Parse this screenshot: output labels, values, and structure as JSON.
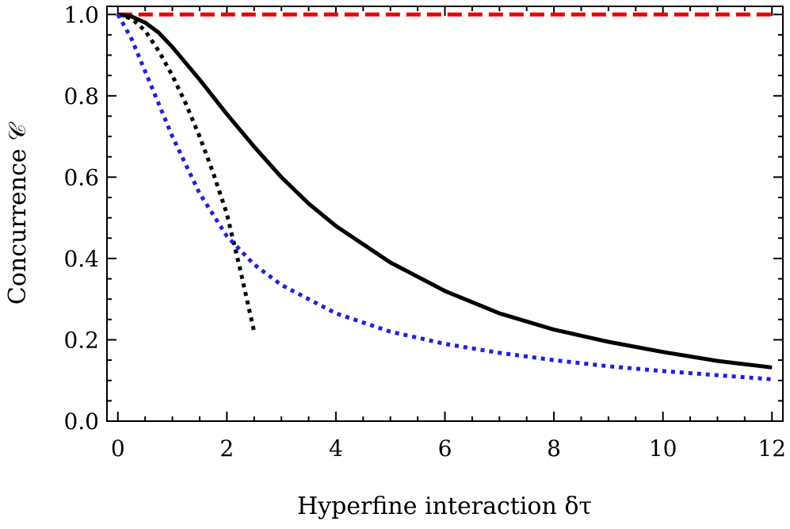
{
  "chart_data": {
    "type": "line",
    "xlabel": "Hyperfine interaction δτ",
    "ylabel": "Concurrence 𝒞",
    "xlim": [
      -0.2,
      12.2
    ],
    "ylim": [
      0,
      1.02
    ],
    "xticks": [
      0,
      2,
      4,
      6,
      8,
      10,
      12
    ],
    "yticks": [
      0.0,
      0.2,
      0.4,
      0.6,
      0.8,
      1.0
    ],
    "xtick_labels": [
      "0",
      "2",
      "4",
      "6",
      "8",
      "10",
      "12"
    ],
    "ytick_labels": [
      "0.0",
      "0.2",
      "0.4",
      "0.6",
      "0.8",
      "1.0"
    ],
    "grid": false,
    "legend": "none",
    "series": [
      {
        "style": "dashed",
        "color": "#ee0000",
        "x": [
          0,
          12
        ],
        "y": [
          1.0,
          1.0
        ]
      },
      {
        "style": "solid",
        "color": "#000000",
        "x": [
          0,
          0.25,
          0.5,
          0.75,
          1.0,
          1.25,
          1.5,
          2.0,
          2.5,
          3.0,
          3.5,
          4.0,
          5.0,
          6.0,
          7.0,
          8.0,
          9.0,
          10.0,
          11.0,
          12.0
        ],
        "y": [
          1.0,
          0.995,
          0.98,
          0.955,
          0.92,
          0.88,
          0.84,
          0.755,
          0.675,
          0.6,
          0.535,
          0.48,
          0.39,
          0.32,
          0.265,
          0.225,
          0.195,
          0.17,
          0.148,
          0.132
        ]
      },
      {
        "style": "dotted",
        "color": "#000000",
        "x": [
          0,
          0.25,
          0.5,
          0.75,
          1.0,
          1.25,
          1.5,
          1.75,
          2.0,
          2.25,
          2.5
        ],
        "y": [
          1.0,
          0.99,
          0.96,
          0.91,
          0.85,
          0.78,
          0.7,
          0.61,
          0.51,
          0.37,
          0.22
        ]
      },
      {
        "style": "dotted",
        "color": "#1f1fe0",
        "x": [
          0,
          0.25,
          0.5,
          0.75,
          1.0,
          1.5,
          2.0,
          2.5,
          3.0,
          4.0,
          5.0,
          6.0,
          7.0,
          8.0,
          9.0,
          10.0,
          11.0,
          12.0
        ],
        "y": [
          1.0,
          0.94,
          0.86,
          0.78,
          0.7,
          0.56,
          0.455,
          0.385,
          0.335,
          0.265,
          0.22,
          0.19,
          0.168,
          0.15,
          0.135,
          0.123,
          0.113,
          0.103
        ]
      }
    ]
  }
}
